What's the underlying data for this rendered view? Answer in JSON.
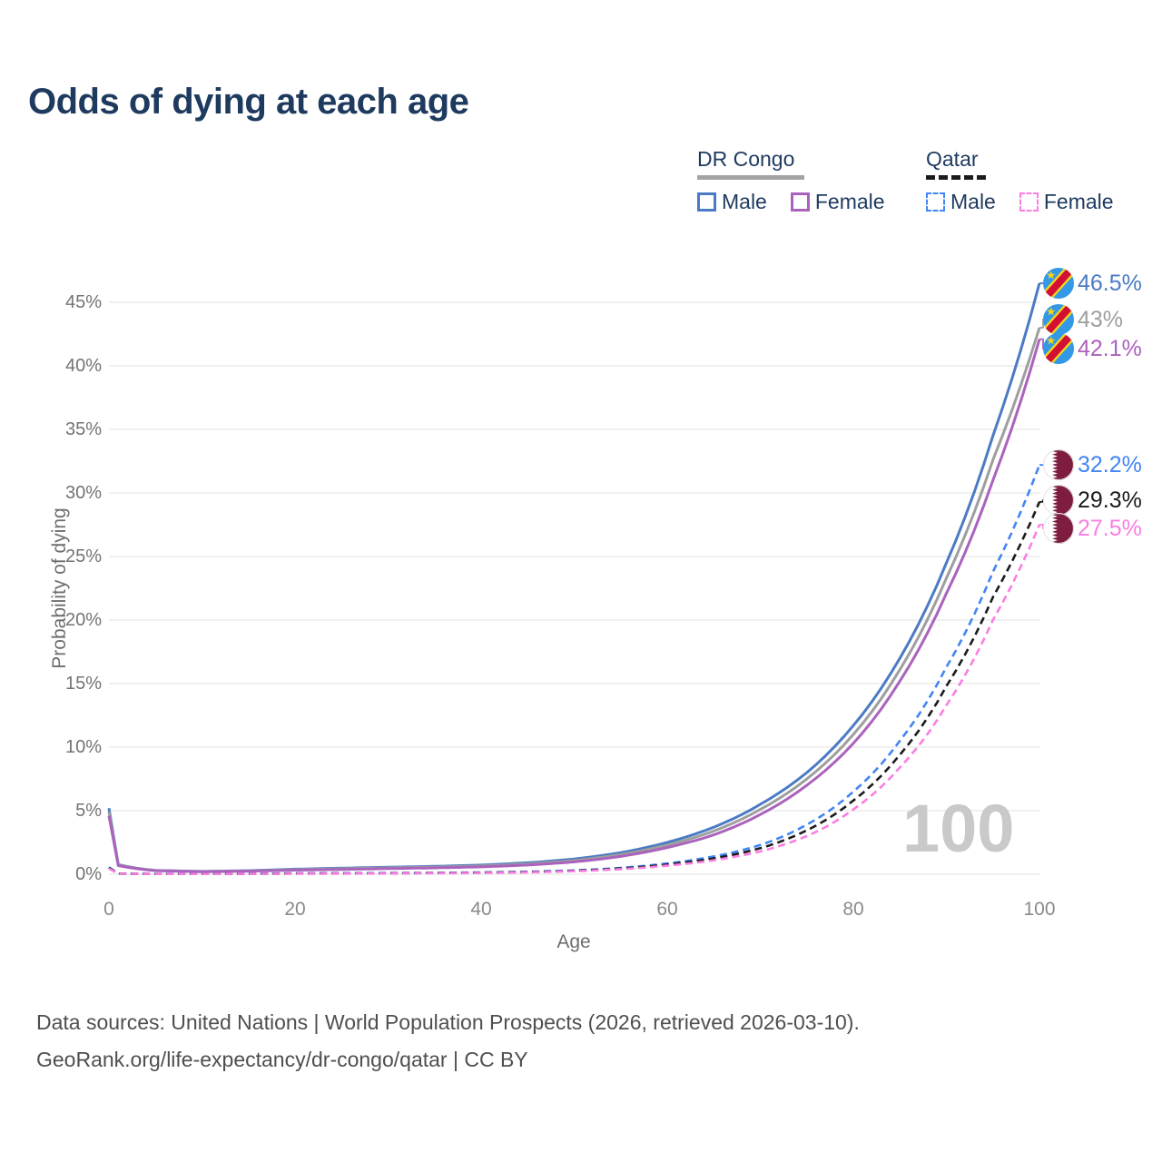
{
  "title": "Odds of dying at each age",
  "legend": {
    "groups": [
      {
        "label": "DR Congo",
        "rule_style": "solid",
        "items": [
          {
            "label": "Male",
            "swatch_style": "solid",
            "series_index": 0
          },
          {
            "label": "Female",
            "swatch_style": "solid",
            "series_index": 2
          }
        ],
        "rule_series_index": 1
      },
      {
        "label": "Qatar",
        "rule_style": "dashed",
        "items": [
          {
            "label": "Male",
            "swatch_style": "dashed",
            "series_index": 3
          },
          {
            "label": "Female",
            "swatch_style": "dashed",
            "series_index": 5
          }
        ],
        "rule_series_index": 4
      }
    ]
  },
  "chart_data": {
    "type": "line",
    "title": "Odds of dying at each age",
    "xlabel": "Age",
    "ylabel": "Probability of dying",
    "xlim": [
      0,
      100
    ],
    "ylim": [
      0,
      47
    ],
    "grid": "horizontal",
    "legend_position": "top-right",
    "watermark": "100",
    "xticks": [
      0,
      20,
      40,
      60,
      80,
      100
    ],
    "yticks": [
      {
        "value": 0,
        "label": "0%"
      },
      {
        "value": 5,
        "label": "5%"
      },
      {
        "value": 10,
        "label": "10%"
      },
      {
        "value": 15,
        "label": "15%"
      },
      {
        "value": 20,
        "label": "20%"
      },
      {
        "value": 25,
        "label": "25%"
      },
      {
        "value": 30,
        "label": "30%"
      },
      {
        "value": 35,
        "label": "35%"
      },
      {
        "value": 40,
        "label": "40%"
      },
      {
        "value": 45,
        "label": "45%"
      }
    ],
    "x": [
      0,
      1,
      5,
      10,
      15,
      20,
      25,
      30,
      35,
      40,
      45,
      50,
      55,
      60,
      65,
      70,
      75,
      80,
      85,
      90,
      95,
      100
    ],
    "series": [
      {
        "name": "DR Congo Male",
        "country": "DR Congo",
        "sex": "Male",
        "style": "solid",
        "color": "#4a7bc4",
        "end_label": "46.5%",
        "values": [
          5.2,
          0.75,
          0.3,
          0.22,
          0.28,
          0.4,
          0.48,
          0.55,
          0.62,
          0.72,
          0.9,
          1.2,
          1.7,
          2.5,
          3.7,
          5.5,
          8.0,
          11.7,
          17.0,
          24.5,
          34.5,
          46.5
        ]
      },
      {
        "name": "DR Congo Both sexes",
        "country": "DR Congo",
        "sex": "Both sexes",
        "style": "solid",
        "color": "#9e9e9e",
        "end_label": "43%",
        "values": [
          4.9,
          0.72,
          0.29,
          0.21,
          0.26,
          0.36,
          0.43,
          0.5,
          0.56,
          0.65,
          0.81,
          1.08,
          1.55,
          2.3,
          3.4,
          5.1,
          7.5,
          11.0,
          16.1,
          23.3,
          32.6,
          43.0
        ]
      },
      {
        "name": "DR Congo Female",
        "country": "DR Congo",
        "sex": "Female",
        "style": "solid",
        "color": "#ab62bd",
        "end_label": "42.1%",
        "values": [
          4.6,
          0.68,
          0.28,
          0.2,
          0.24,
          0.32,
          0.38,
          0.44,
          0.5,
          0.58,
          0.72,
          0.97,
          1.4,
          2.1,
          3.1,
          4.7,
          7.0,
          10.3,
          15.2,
          22.1,
          31.0,
          42.1
        ]
      },
      {
        "name": "Qatar Male",
        "country": "Qatar",
        "sex": "Male",
        "style": "dashed",
        "color": "#4285f4",
        "end_label": "32.2%",
        "values": [
          0.55,
          0.05,
          0.02,
          0.02,
          0.04,
          0.07,
          0.08,
          0.09,
          0.11,
          0.14,
          0.2,
          0.3,
          0.5,
          0.85,
          1.4,
          2.3,
          3.9,
          6.5,
          10.5,
          16.3,
          23.8,
          32.2
        ]
      },
      {
        "name": "Qatar Both sexes",
        "country": "Qatar",
        "sex": "Both sexes",
        "style": "dashed",
        "color": "#1b1b1b",
        "end_label": "29.3%",
        "values": [
          0.5,
          0.05,
          0.02,
          0.02,
          0.035,
          0.055,
          0.065,
          0.075,
          0.095,
          0.12,
          0.17,
          0.27,
          0.45,
          0.76,
          1.25,
          2.05,
          3.45,
          5.8,
          9.4,
          14.8,
          21.8,
          29.3
        ]
      },
      {
        "name": "Qatar Female",
        "country": "Qatar",
        "sex": "Female",
        "style": "dashed",
        "color": "#fb7de2",
        "end_label": "27.5%",
        "values": [
          0.45,
          0.04,
          0.02,
          0.02,
          0.03,
          0.04,
          0.05,
          0.06,
          0.08,
          0.1,
          0.15,
          0.24,
          0.4,
          0.67,
          1.1,
          1.8,
          3.0,
          5.1,
          8.4,
          13.3,
          20.0,
          27.5
        ]
      }
    ]
  },
  "end_labels": [
    {
      "value": "46.5%",
      "color": "#4a7bc4",
      "flag": "dr-congo",
      "series_index": 0
    },
    {
      "value": "43%",
      "color": "#9e9e9e",
      "flag": "dr-congo",
      "series_index": 1
    },
    {
      "value": "42.1%",
      "color": "#ab62bd",
      "flag": "dr-congo",
      "series_index": 2
    },
    {
      "value": "32.2%",
      "color": "#4285f4",
      "flag": "qatar",
      "series_index": 3
    },
    {
      "value": "29.3%",
      "color": "#1b1b1b",
      "flag": "qatar",
      "series_index": 4
    },
    {
      "value": "27.5%",
      "color": "#fb7de2",
      "flag": "qatar",
      "series_index": 5
    }
  ],
  "flag_colors": {
    "dr_congo_blue": "#3398e6",
    "dr_congo_red": "#d21034",
    "dr_congo_yellow": "#f7d618",
    "qatar_maroon": "#7f1d41",
    "qatar_white": "#ffffff"
  },
  "footer": {
    "line1": "Data sources: United Nations | World Population Prospects (2026, retrieved 2026-03-10).",
    "line2": "GeoRank.org/life-expectancy/dr-congo/qatar | CC BY"
  }
}
